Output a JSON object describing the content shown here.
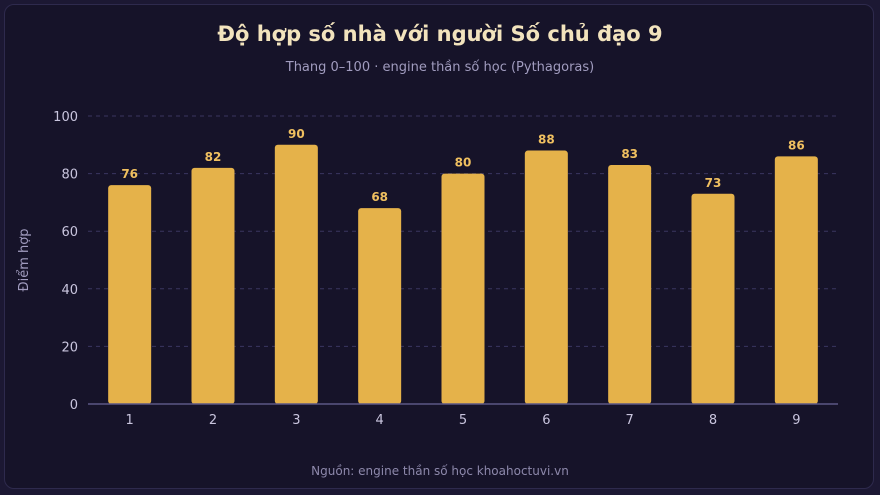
{
  "header": {
    "title": "Độ hợp số nhà với người Số chủ đạo 9",
    "subtitle": "Thang 0–100 · engine thần số học (Pythagoras)"
  },
  "footer": {
    "source": "Nguồn: engine thần số học khoahoctuvi.vn"
  },
  "colors": {
    "background": "#161329",
    "bar": "#e5b24a",
    "bar_label": "#f0c060",
    "grid": "#3a3660",
    "axis": "#5c5785"
  },
  "chart_data": {
    "type": "bar",
    "categories": [
      "1",
      "2",
      "3",
      "4",
      "5",
      "6",
      "7",
      "8",
      "9"
    ],
    "values": [
      76,
      82,
      90,
      68,
      80,
      88,
      83,
      73,
      86
    ],
    "title": "Độ hợp số nhà với người Số chủ đạo 9",
    "subtitle": "Thang 0–100 · engine thần số học (Pythagoras)",
    "xlabel": "",
    "ylabel": "Điểm hợp",
    "ylim": [
      0,
      100
    ],
    "yticks": [
      0,
      20,
      40,
      60,
      80,
      100
    ],
    "grid": true,
    "data_labels": true,
    "legend": "none"
  }
}
